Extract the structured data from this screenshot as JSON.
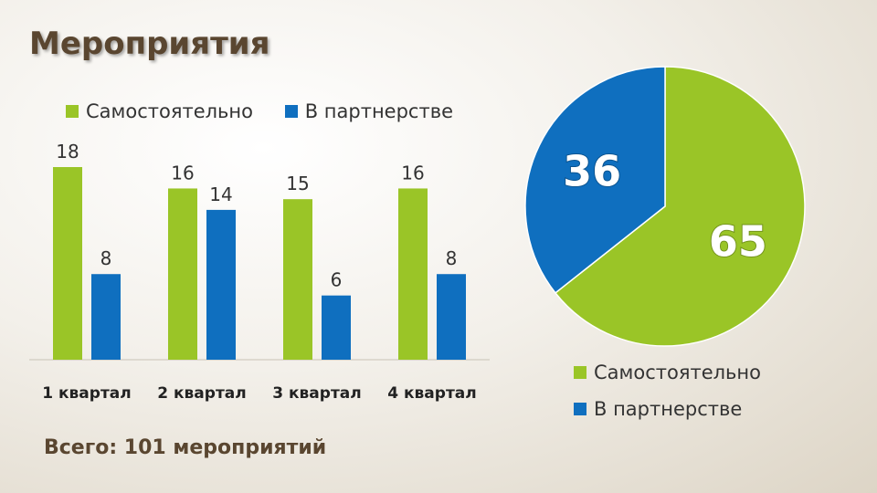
{
  "slide": {
    "title": "Мероприятия",
    "total_text": "Всего: 101 мероприятий"
  },
  "colors": {
    "self": "#9ac527",
    "partner": "#0f6fbf"
  },
  "chart_data": [
    {
      "type": "bar",
      "categories": [
        "1 квартал",
        "2 квартал",
        "3 квартал",
        "4 квартал"
      ],
      "series": [
        {
          "name": "Самостоятельно",
          "values": [
            18,
            16,
            15,
            16
          ]
        },
        {
          "name": "В партнерстве",
          "values": [
            8,
            14,
            6,
            8
          ]
        }
      ],
      "ylim": [
        0,
        18
      ],
      "grid": false,
      "legend": "top"
    },
    {
      "type": "pie",
      "labels": [
        "Самостоятельно",
        "В партнерстве"
      ],
      "values": [
        65,
        36
      ],
      "legend": "bottom"
    }
  ]
}
